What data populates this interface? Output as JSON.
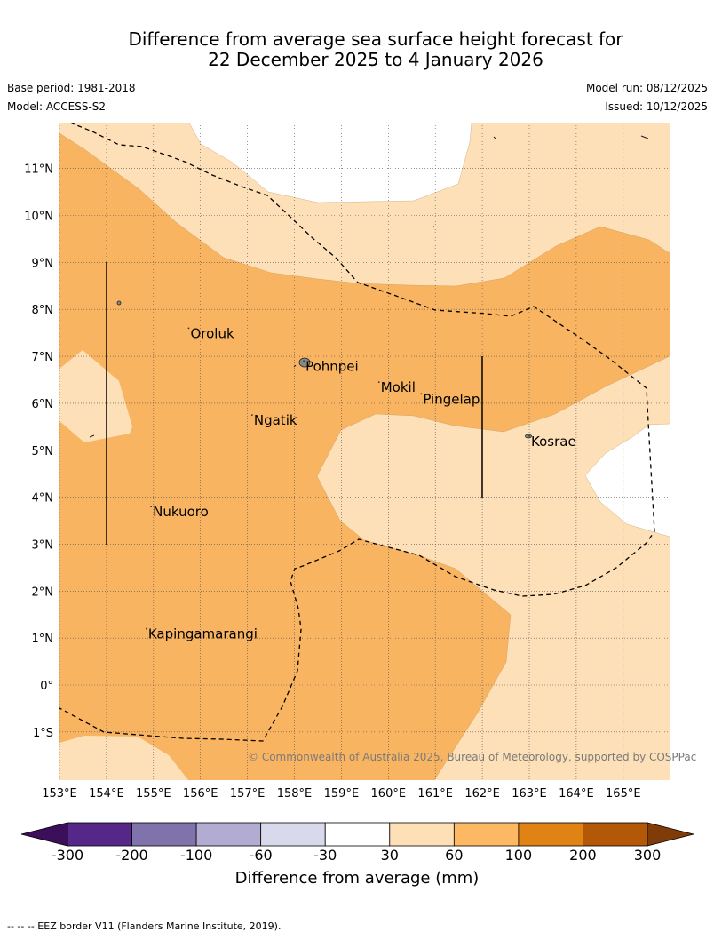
{
  "header": {
    "title_line1": "Difference from average sea surface height forecast for",
    "title_line2": "22 December 2025 to 4 January 2026",
    "base_period": "Base period: 1981-2018",
    "model": "Model: ACCESS-S2",
    "model_run": "Model run: 08/12/2025",
    "issued": "Issued: 10/12/2025"
  },
  "map": {
    "lon_range": [
      153,
      166
    ],
    "lat_range": [
      -2,
      12
    ],
    "lon_ticks": [
      "153°E",
      "154°E",
      "155°E",
      "156°E",
      "157°E",
      "158°E",
      "159°E",
      "160°E",
      "161°E",
      "162°E",
      "163°E",
      "164°E",
      "165°E"
    ],
    "lat_ticks": [
      "11°N",
      "10°N",
      "9°N",
      "8°N",
      "7°N",
      "6°N",
      "5°N",
      "4°N",
      "3°N",
      "2°N",
      "1°N",
      "0°",
      "1°S"
    ],
    "places": [
      {
        "name": "Oroluk",
        "lon": 155.75,
        "lat": 7.6
      },
      {
        "name": "Pohnpei",
        "lon": 158.2,
        "lat": 6.9
      },
      {
        "name": "Mokil",
        "lon": 159.8,
        "lat": 6.45
      },
      {
        "name": "Pingelap",
        "lon": 160.7,
        "lat": 6.2
      },
      {
        "name": "Ngatik",
        "lon": 157.1,
        "lat": 5.75
      },
      {
        "name": "Kosrae",
        "lon": 163.0,
        "lat": 5.3
      },
      {
        "name": "Nukuoro",
        "lon": 154.95,
        "lat": 3.8
      },
      {
        "name": "Kapingamarangi",
        "lon": 154.85,
        "lat": 1.2
      }
    ],
    "credit": "© Commonwealth of Australia 2025, Bureau of Meteorology, supported by COSPPac",
    "colors": {
      "light": "#fde0b7",
      "medium": "#f9b461",
      "white": "#ffffff",
      "grid": "#555555",
      "eez": "#000000"
    }
  },
  "colorbar": {
    "labels": [
      "-300",
      "-200",
      "-100",
      "-60",
      "-30",
      "30",
      "60",
      "100",
      "200",
      "300"
    ],
    "colors": [
      "#3b0f5a",
      "#542788",
      "#8073ac",
      "#b2abd2",
      "#d8daeb",
      "#ffffff",
      "#fee0b6",
      "#fdb863",
      "#e08214",
      "#b35806",
      "#7f3b08"
    ],
    "title": "Difference from average (mm)"
  },
  "footnote": "--  --  -- EEZ border V11 (Flanders Marine Institute, 2019)."
}
